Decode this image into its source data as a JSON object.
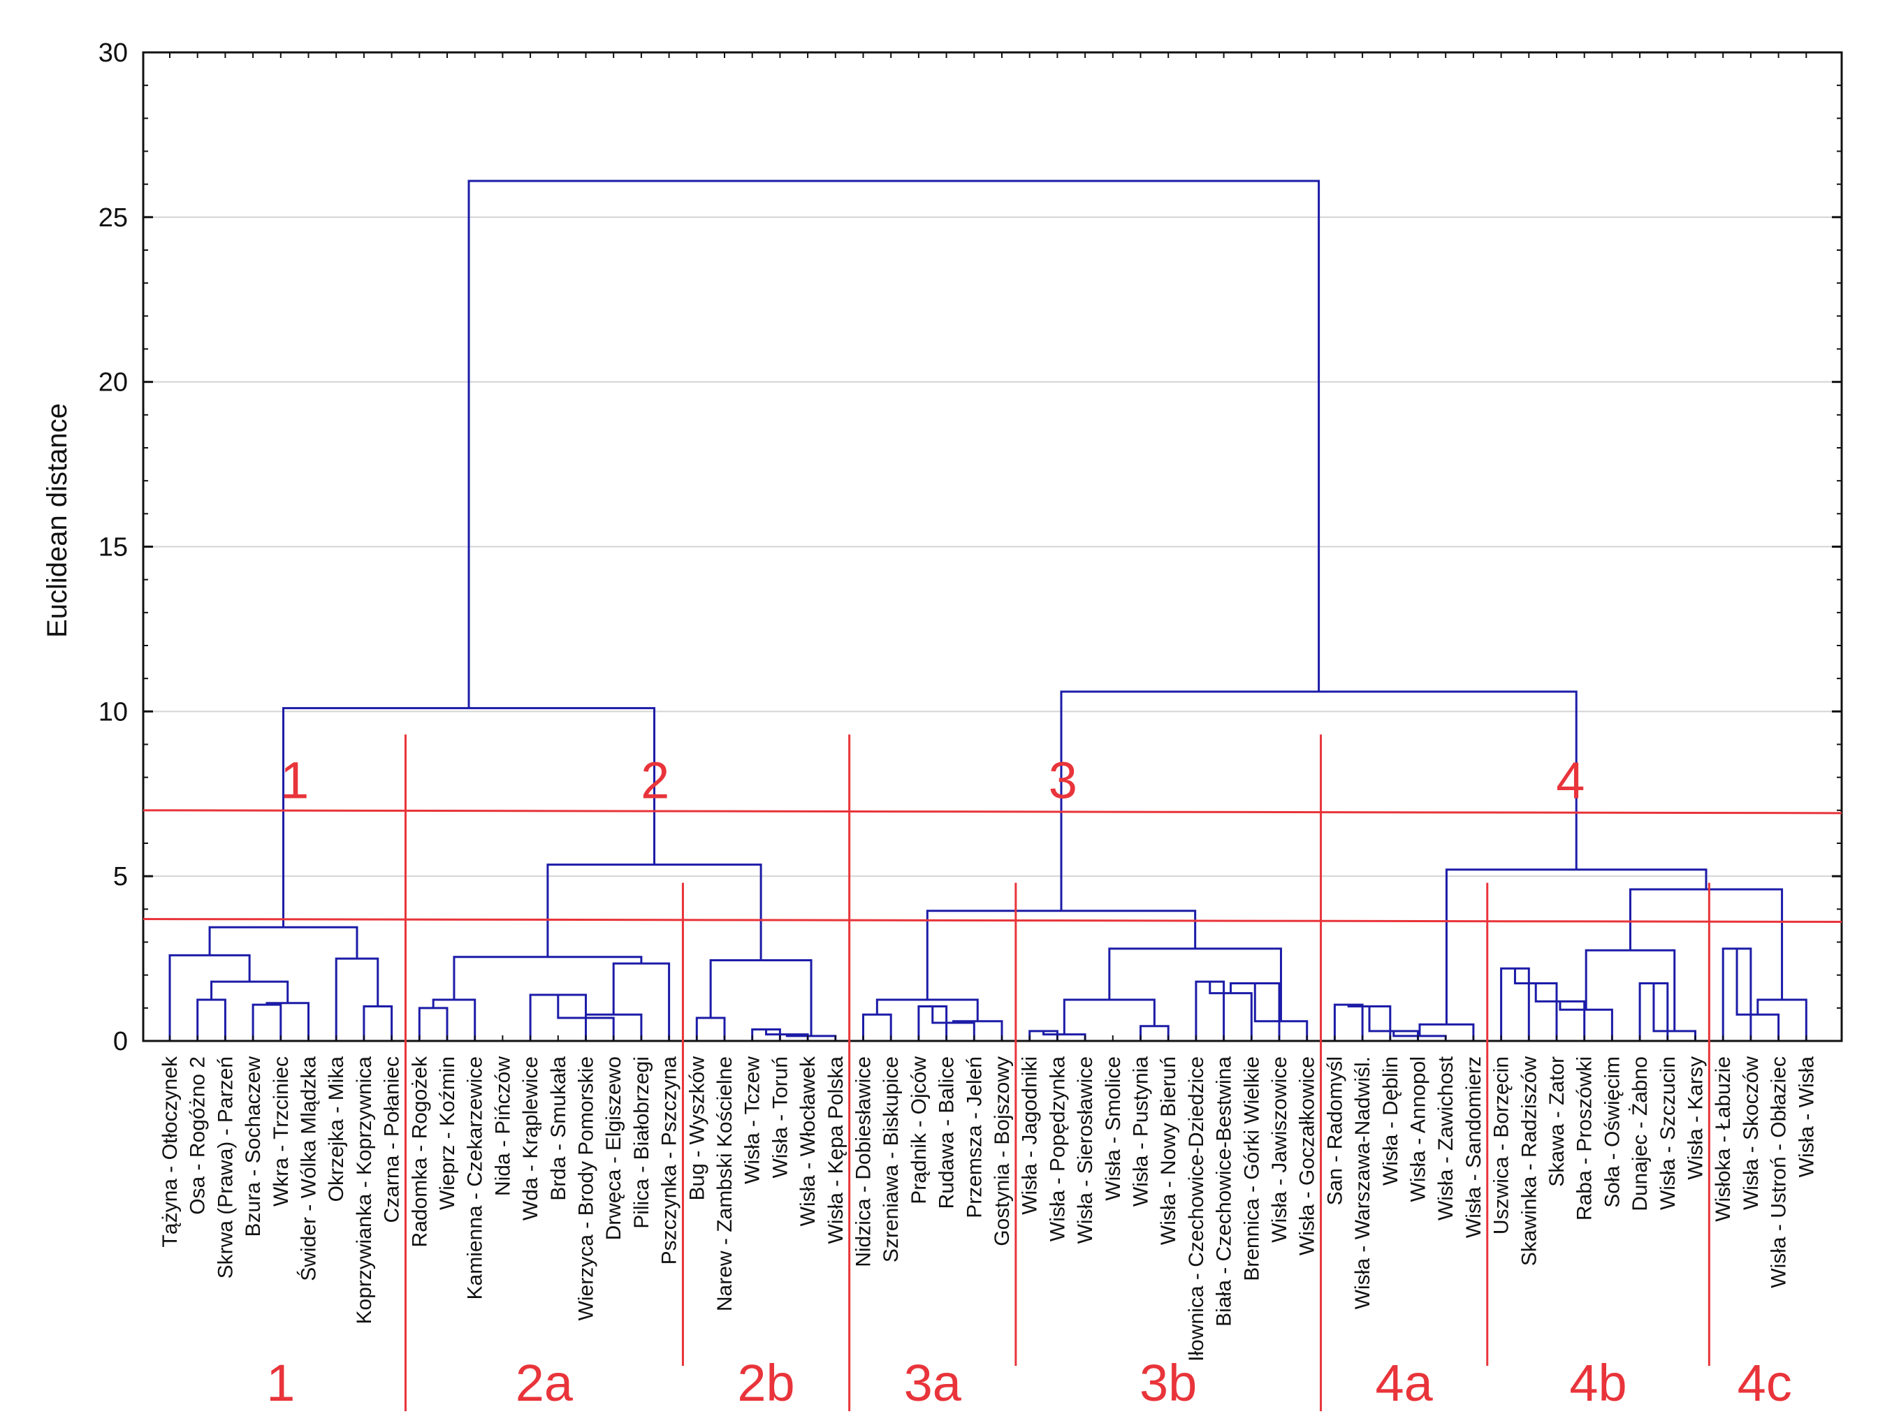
{
  "chart_data": {
    "type": "dendrogram",
    "title": "",
    "xlabel": "",
    "ylabel": "Euclidean distance",
    "ylim": [
      0,
      30
    ],
    "yticks": [
      "0",
      "5",
      "10",
      "15",
      "20",
      "25",
      "30"
    ],
    "grid": true,
    "leaves": [
      "Tążyna - Otłoczynek",
      "Osa - Rogóżno 2",
      "Skrwa (Prawa) - Parzeń",
      "Bzura - Sochaczew",
      "Wkra - Trzciniec",
      "Świder - Wólka Mlądzka",
      "Okrzejka - Mika",
      "Koprzywianka - Koprzywnica",
      "Czarna - Połaniec",
      "Radomka - Rogożek",
      "Wieprz - Koźmin",
      "Kamienna - Czekarzewice",
      "Nida - Pińczów",
      "Wda - Krąplewice",
      "Brda - Smukała",
      "Wierzyca - Brody Pomorskie",
      "Drwęca - Elgiszewo",
      "Pilica - Białobrzegi",
      "Pszczynka - Pszczyna",
      "Bug - Wyszków",
      "Narew - Zambski Kościelne",
      "Wisła - Tczew",
      "Wisła - Toruń",
      "Wisła - Włocławek",
      "Wisła - Kępa Polska",
      "Nidzica - Dobiesławice",
      "Szreniawa - Biskupice",
      "Prądnik - Ojców",
      "Rudawa - Balice",
      "Przemsza - Jeleń",
      "Gostynia - Bojszowy",
      "Wisła - Jagodniki",
      "Wisła - Popędzynka",
      "Wisła - Sierosławice",
      "Wisła - Smolice",
      "Wisła - Pustynia",
      "Wisła - Nowy Bieruń",
      "Iłownica - Czechowice-Dziedzice",
      "Biała - Czechowice-Bestwina",
      "Brennica - Górki Wielkie",
      "Wisła - Jawiszowice",
      "Wisła - Goczałkowice",
      "San - Radomyśl",
      "Wisła - Warszawa-Nadwiśl.",
      "Wisła - Dęblin",
      "Wisła - Annopol",
      "Wisła - Zawichost",
      "Wisła - Sandomierz",
      "Uszwica - Borzęcin",
      "Skawinka - Radziszów",
      "Skawa - Zator",
      "Raba - Proszówki",
      "Soła - Oświęcim",
      "Dunajec - Żabno",
      "Wisła - Szczucin",
      "Wisła - Karsy",
      "Wisłoka - Łabuzie",
      "Wisła - Skoczów",
      "Wisła - Ustroń - Obłaziec",
      "Wisła - Wisła"
    ],
    "merges": [
      [
        1,
        2,
        1.25
      ],
      [
        3,
        4,
        1.1
      ],
      [
        4,
        5,
        1.15
      ],
      [
        2,
        4,
        1.8
      ],
      [
        0,
        2,
        2.6
      ],
      [
        7,
        8,
        1.05
      ],
      [
        6,
        7,
        2.5
      ],
      [
        0,
        6,
        3.45
      ],
      [
        9,
        10,
        1.0
      ],
      [
        9,
        11,
        1.25
      ],
      [
        13,
        15,
        1.4
      ],
      [
        15,
        16,
        0.7
      ],
      [
        16,
        17,
        0.8
      ],
      [
        17,
        18,
        2.35
      ],
      [
        9,
        13,
        2.55
      ],
      [
        19,
        20,
        0.7
      ],
      [
        21,
        22,
        0.35
      ],
      [
        22,
        23,
        0.2
      ],
      [
        23,
        24,
        0.15
      ],
      [
        19,
        21,
        2.45
      ],
      [
        9,
        19,
        5.35
      ],
      [
        0,
        9,
        10.1
      ],
      [
        25,
        26,
        0.8
      ],
      [
        27,
        28,
        1.05
      ],
      [
        28,
        29,
        0.55
      ],
      [
        29,
        30,
        0.6
      ],
      [
        25,
        27,
        1.25
      ],
      [
        31,
        32,
        0.3
      ],
      [
        32,
        33,
        0.2
      ],
      [
        31,
        33,
        0.45
      ],
      [
        35,
        36,
        0.45
      ],
      [
        31,
        35,
        1.25
      ],
      [
        37,
        38,
        1.8
      ],
      [
        38,
        39,
        1.45
      ],
      [
        39,
        40,
        1.75
      ],
      [
        40,
        41,
        0.6
      ],
      [
        31,
        37,
        2.8
      ],
      [
        25,
        31,
        3.95
      ],
      [
        42,
        43,
        1.1
      ],
      [
        43,
        44,
        1.05
      ],
      [
        44,
        45,
        0.3
      ],
      [
        45,
        46,
        0.15
      ],
      [
        46,
        47,
        0.5
      ],
      [
        45,
        47,
        0.95
      ],
      [
        48,
        49,
        2.2
      ],
      [
        49,
        50,
        1.75
      ],
      [
        50,
        51,
        1.2
      ],
      [
        51,
        52,
        0.95
      ],
      [
        53,
        54,
        1.75
      ],
      [
        54,
        55,
        0.3
      ],
      [
        49,
        53,
        2.75
      ],
      [
        48,
        49,
        2.75
      ],
      [
        56,
        57,
        2.8
      ],
      [
        57,
        58,
        0.8
      ],
      [
        58,
        59,
        1.25
      ],
      [
        48,
        56,
        4.6
      ],
      [
        42,
        48,
        5.2
      ],
      [
        25,
        42,
        10.6
      ],
      [
        0,
        25,
        26.1
      ]
    ],
    "thresholds": [
      7.0,
      3.7
    ],
    "cluster_labels": [
      {
        "text": "1",
        "x_leaf": 4.5,
        "y": 8.0
      },
      {
        "text": "2",
        "x_leaf": 17.5,
        "y": 8.0
      },
      {
        "text": "3",
        "x_leaf": 32.2,
        "y": 8.0
      },
      {
        "text": "4",
        "x_leaf": 50.5,
        "y": 8.0
      }
    ],
    "subgroups": [
      {
        "text": "1",
        "from_leaf": 0,
        "to_leaf": 8
      },
      {
        "text": "2a",
        "from_leaf": 9,
        "to_leaf": 18
      },
      {
        "text": "2b",
        "from_leaf": 19,
        "to_leaf": 24
      },
      {
        "text": "3a",
        "from_leaf": 25,
        "to_leaf": 30
      },
      {
        "text": "3b",
        "from_leaf": 31,
        "to_leaf": 41
      },
      {
        "text": "4a",
        "from_leaf": 42,
        "to_leaf": 47
      },
      {
        "text": "4b",
        "from_leaf": 48,
        "to_leaf": 55
      },
      {
        "text": "4c",
        "from_leaf": 56,
        "to_leaf": 59
      }
    ],
    "colors": {
      "tree": "#1c1ca8",
      "threshold": "#e8343a",
      "grid": "#d4d4d4",
      "axis": "#111111"
    }
  }
}
